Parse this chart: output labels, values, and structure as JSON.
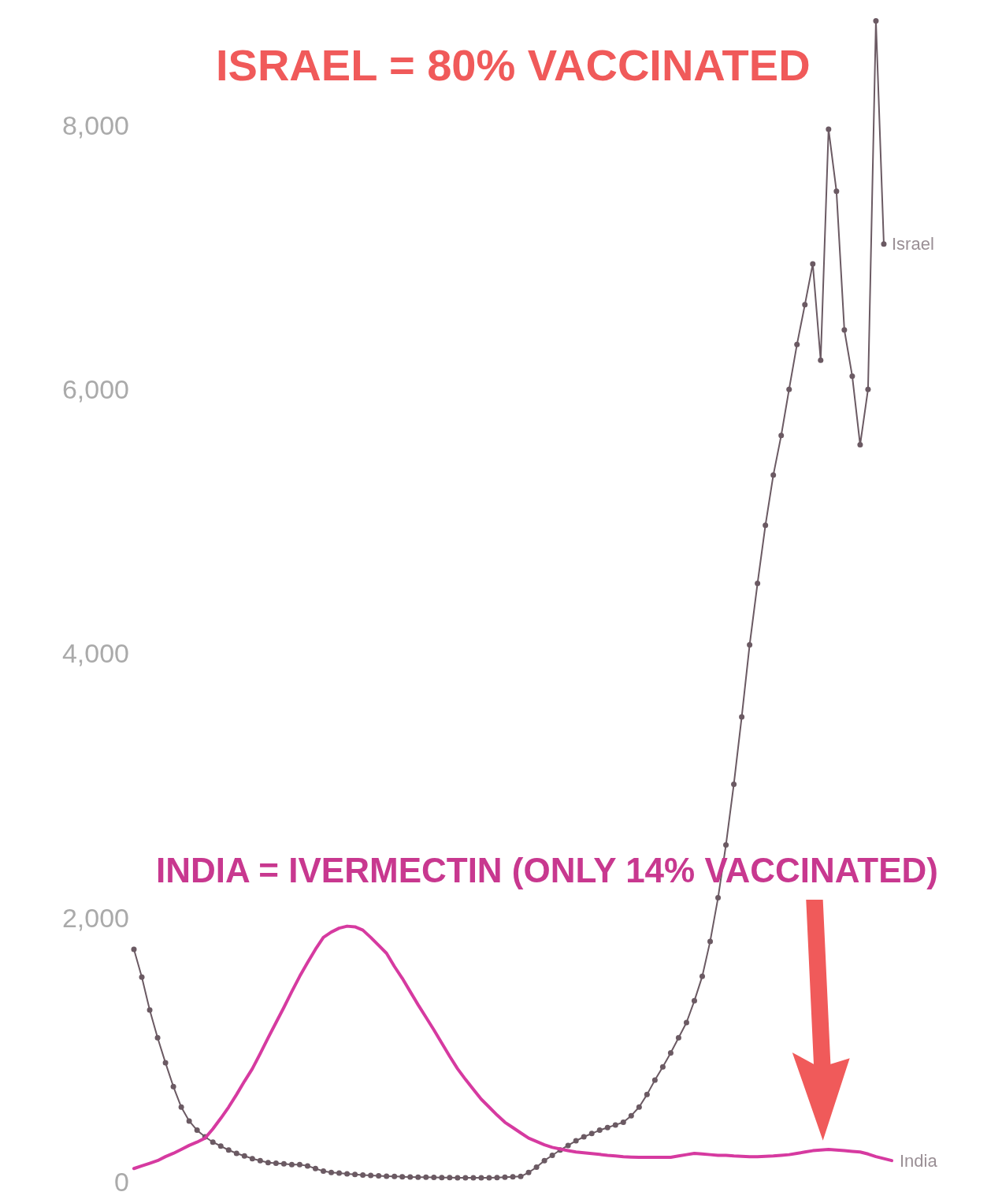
{
  "chart_data": {
    "type": "line",
    "annotations": [
      "ISRAEL = 80% VACCINATED",
      "INDIA = IVERMECTIN (ONLY 14% VACCINATED)"
    ],
    "categories": [
      null,
      null,
      null,
      null,
      null,
      null,
      null,
      null,
      null,
      null,
      null,
      null,
      null,
      null,
      null,
      null,
      null,
      null,
      null,
      null,
      null,
      null,
      null,
      null,
      null,
      null,
      null,
      null,
      null,
      null,
      null,
      null,
      null,
      null,
      null,
      null,
      null,
      null,
      null,
      null,
      null,
      null,
      null,
      null,
      null,
      null,
      null,
      null,
      null,
      null,
      null,
      null,
      null,
      null,
      null,
      null,
      null,
      null,
      null,
      null,
      null,
      null,
      null,
      null,
      null,
      null,
      null,
      null,
      null,
      null,
      null,
      null,
      null,
      null,
      null,
      null,
      null,
      null,
      null,
      null,
      null,
      null,
      null,
      null,
      null,
      null,
      null,
      null,
      null,
      null,
      null,
      null,
      null,
      null,
      null,
      null,
      null
    ],
    "series": [
      {
        "name": "Israel",
        "color": "#6b5a63",
        "marker": "circle",
        "values": [
          1760,
          1550,
          1300,
          1090,
          900,
          720,
          565,
          460,
          390,
          340,
          300,
          270,
          240,
          215,
          195,
          175,
          160,
          145,
          140,
          135,
          130,
          130,
          120,
          100,
          80,
          70,
          65,
          60,
          55,
          50,
          48,
          45,
          42,
          40,
          38,
          36,
          35,
          34,
          33,
          32,
          31,
          30,
          30,
          30,
          30,
          30,
          32,
          35,
          38,
          40,
          70,
          110,
          160,
          200,
          240,
          275,
          310,
          340,
          365,
          390,
          410,
          430,
          450,
          500,
          565,
          660,
          770,
          870,
          975,
          1090,
          1205,
          1370,
          1555,
          1820,
          2150,
          2550,
          3010,
          3520,
          4065,
          4530,
          4970,
          5350,
          5650,
          6000,
          6340,
          6640,
          6950,
          6220,
          7970,
          7500,
          6450,
          6100,
          5580,
          6000,
          8790,
          7100,
          null
        ]
      },
      {
        "name": "India",
        "color": "#d63aa0",
        "marker": "none",
        "values": [
          100,
          120,
          140,
          160,
          190,
          215,
          245,
          275,
          300,
          330,
          400,
          480,
          565,
          660,
          760,
          855,
          970,
          1090,
          1205,
          1320,
          1440,
          1555,
          1660,
          1760,
          1850,
          1890,
          1920,
          1935,
          1930,
          1905,
          1850,
          1790,
          1730,
          1630,
          1540,
          1440,
          1340,
          1245,
          1150,
          1050,
          950,
          855,
          775,
          700,
          625,
          565,
          505,
          450,
          410,
          370,
          330,
          305,
          280,
          260,
          248,
          236,
          225,
          219,
          213,
          207,
          200,
          195,
          190,
          187,
          185,
          185,
          185,
          185,
          185,
          195,
          205,
          215,
          210,
          205,
          200,
          200,
          195,
          192,
          190,
          190,
          192,
          195,
          200,
          205,
          215,
          225,
          235,
          240,
          245,
          240,
          235,
          230,
          225,
          210,
          190,
          175,
          160
        ]
      }
    ],
    "ylim": [
      0,
      8900
    ],
    "yticks": [
      {
        "value": 0,
        "label": "0"
      },
      {
        "value": 2000,
        "label": "2,000"
      },
      {
        "value": 4000,
        "label": "4,000"
      },
      {
        "value": 6000,
        "label": "6,000"
      },
      {
        "value": 8000,
        "label": "8,000"
      }
    ],
    "tick_labels": "y",
    "legend": false
  }
}
